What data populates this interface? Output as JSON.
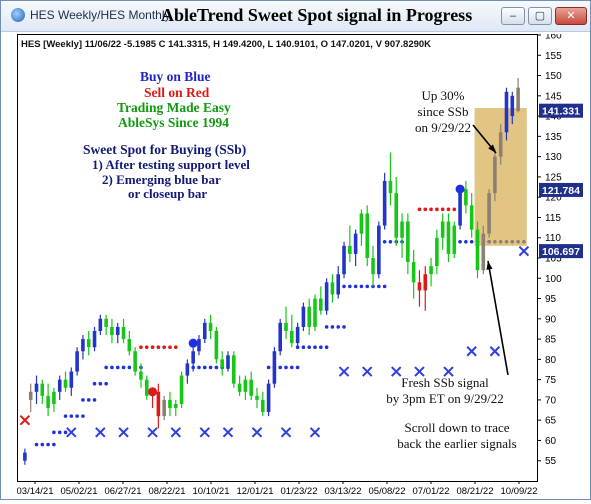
{
  "window": {
    "tab_label": "HES Weekly/HES Monthly",
    "title": "AbleTrend Sweet Spot signal in Progress",
    "buttons": [
      "–",
      "▢",
      "✕"
    ]
  },
  "header": {
    "info_line": "HES [Weekly] 11/06/22 -5.1985 C 141.3315, H 149.4200, L 140.9101, O 147.0201, V 907.8290K"
  },
  "legend_text": {
    "buy": "Buy on Blue",
    "sell": "Sell on Red",
    "tagline": "Trading Made Easy",
    "since": "AbleSys Since 1994"
  },
  "annotations": {
    "ssb_title": "Sweet Spot for Buying (SSb)",
    "ssb_rule1": "1) After testing support level",
    "ssb_rule2": "2) Emerging blue bar",
    "ssb_rule3": "or closeup bar",
    "up_line1": "Up 30%",
    "up_line2": "since SSb",
    "up_line3": "on 9/29/22",
    "fresh_line1": "Fresh SSb signal",
    "fresh_line2": "by 3pm ET on 9/29/22",
    "scroll_line1": "Scroll down to trace",
    "scroll_line2": "back the earlier signals"
  },
  "price_tags": [
    {
      "value": "141.331",
      "color": "#1f2f8c"
    },
    {
      "value": "121.784",
      "color": "#1f2f8c"
    },
    {
      "value": "106.697",
      "color": "#1f2f8c"
    }
  ],
  "colors": {
    "blue_bar": "#2335c8",
    "red_bar": "#e01818",
    "green_bar": "#17c717",
    "gray_bar": "#8d7f72",
    "stop_blue": "#2030e0",
    "stop_red": "#e01818",
    "x_marker": "#2c3fe0",
    "highlight": "#d9b25a",
    "buy_text": "#2323c8",
    "sell_text": "#e01818",
    "green_text": "#0f9a0f",
    "ssb_text": "#121a78"
  },
  "chart_data": {
    "type": "candlestick",
    "ylim": [
      50,
      160
    ],
    "y_ticks": [
      55,
      60,
      65,
      70,
      75,
      80,
      85,
      90,
      95,
      100,
      105,
      110,
      115,
      120,
      125,
      130,
      135,
      140,
      145,
      150,
      155,
      160
    ],
    "x_ticks": [
      "03/14/21",
      "05/02/21",
      "06/27/21",
      "08/22/21",
      "10/10/21",
      "12/01/21",
      "01/23/22",
      "03/13/22",
      "05/08/22",
      "07/01/22",
      "08/21/22",
      "10/09/22"
    ],
    "bars": [
      {
        "o": 55,
        "h": 58,
        "l": 54,
        "c": 57,
        "col": "blue"
      },
      {
        "o": 70,
        "h": 74,
        "l": 67,
        "c": 72,
        "col": "gray"
      },
      {
        "o": 72,
        "h": 76,
        "l": 69,
        "c": 74,
        "col": "blue"
      },
      {
        "o": 74,
        "h": 75,
        "l": 69,
        "c": 71,
        "col": "green"
      },
      {
        "o": 71,
        "h": 74,
        "l": 66,
        "c": 68,
        "col": "green"
      },
      {
        "o": 69,
        "h": 73,
        "l": 67,
        "c": 72,
        "col": "green"
      },
      {
        "o": 72,
        "h": 76,
        "l": 70,
        "c": 75,
        "col": "blue"
      },
      {
        "o": 75,
        "h": 77,
        "l": 72,
        "c": 73,
        "col": "green"
      },
      {
        "o": 73,
        "h": 78,
        "l": 71,
        "c": 77,
        "col": "blue"
      },
      {
        "o": 77,
        "h": 83,
        "l": 76,
        "c": 82,
        "col": "blue"
      },
      {
        "o": 82,
        "h": 86,
        "l": 80,
        "c": 85,
        "col": "blue"
      },
      {
        "o": 85,
        "h": 87,
        "l": 81,
        "c": 83,
        "col": "green"
      },
      {
        "o": 83,
        "h": 88,
        "l": 82,
        "c": 87,
        "col": "blue"
      },
      {
        "o": 87,
        "h": 91,
        "l": 86,
        "c": 90,
        "col": "blue"
      },
      {
        "o": 90,
        "h": 91,
        "l": 86,
        "c": 88,
        "col": "green"
      },
      {
        "o": 88,
        "h": 90,
        "l": 84,
        "c": 86,
        "col": "green"
      },
      {
        "o": 86,
        "h": 89,
        "l": 84,
        "c": 88,
        "col": "blue"
      },
      {
        "o": 88,
        "h": 90,
        "l": 84,
        "c": 85,
        "col": "green"
      },
      {
        "o": 85,
        "h": 87,
        "l": 81,
        "c": 82,
        "col": "green"
      },
      {
        "o": 82,
        "h": 83,
        "l": 76,
        "c": 77,
        "col": "green"
      },
      {
        "o": 77,
        "h": 79,
        "l": 73,
        "c": 75,
        "col": "green"
      },
      {
        "o": 75,
        "h": 76,
        "l": 70,
        "c": 71,
        "col": "green"
      },
      {
        "o": 71,
        "h": 73,
        "l": 68,
        "c": 72,
        "col": "red"
      },
      {
        "o": 72,
        "h": 74,
        "l": 63,
        "c": 66,
        "col": "red"
      },
      {
        "o": 66,
        "h": 71,
        "l": 65,
        "c": 70,
        "col": "gray"
      },
      {
        "o": 70,
        "h": 72,
        "l": 66,
        "c": 68,
        "col": "green"
      },
      {
        "o": 68,
        "h": 70,
        "l": 66,
        "c": 69,
        "col": "green"
      },
      {
        "o": 69,
        "h": 77,
        "l": 68,
        "c": 76,
        "col": "green"
      },
      {
        "o": 76,
        "h": 80,
        "l": 74,
        "c": 79,
        "col": "blue"
      },
      {
        "o": 79,
        "h": 83,
        "l": 77,
        "c": 82,
        "col": "blue"
      },
      {
        "o": 82,
        "h": 86,
        "l": 81,
        "c": 85,
        "col": "blue"
      },
      {
        "o": 85,
        "h": 90,
        "l": 84,
        "c": 89,
        "col": "blue"
      },
      {
        "o": 89,
        "h": 91,
        "l": 85,
        "c": 87,
        "col": "green"
      },
      {
        "o": 87,
        "h": 88,
        "l": 79,
        "c": 80,
        "col": "green"
      },
      {
        "o": 80,
        "h": 82,
        "l": 76,
        "c": 78,
        "col": "green"
      },
      {
        "o": 78,
        "h": 82,
        "l": 77,
        "c": 81,
        "col": "blue"
      },
      {
        "o": 81,
        "h": 82,
        "l": 73,
        "c": 74,
        "col": "green"
      },
      {
        "o": 74,
        "h": 76,
        "l": 71,
        "c": 72,
        "col": "green"
      },
      {
        "o": 72,
        "h": 76,
        "l": 70,
        "c": 75,
        "col": "green"
      },
      {
        "o": 75,
        "h": 77,
        "l": 70,
        "c": 71,
        "col": "green"
      },
      {
        "o": 71,
        "h": 73,
        "l": 68,
        "c": 70,
        "col": "green"
      },
      {
        "o": 70,
        "h": 72,
        "l": 66,
        "c": 67,
        "col": "green"
      },
      {
        "o": 67,
        "h": 75,
        "l": 66,
        "c": 74,
        "col": "blue"
      },
      {
        "o": 74,
        "h": 83,
        "l": 73,
        "c": 82,
        "col": "blue"
      },
      {
        "o": 82,
        "h": 90,
        "l": 81,
        "c": 89,
        "col": "blue"
      },
      {
        "o": 89,
        "h": 93,
        "l": 85,
        "c": 87,
        "col": "green"
      },
      {
        "o": 87,
        "h": 91,
        "l": 83,
        "c": 84,
        "col": "green"
      },
      {
        "o": 84,
        "h": 89,
        "l": 83,
        "c": 88,
        "col": "blue"
      },
      {
        "o": 88,
        "h": 94,
        "l": 87,
        "c": 93,
        "col": "blue"
      },
      {
        "o": 93,
        "h": 95,
        "l": 86,
        "c": 88,
        "col": "green"
      },
      {
        "o": 88,
        "h": 96,
        "l": 87,
        "c": 95,
        "col": "green"
      },
      {
        "o": 95,
        "h": 98,
        "l": 91,
        "c": 92,
        "col": "green"
      },
      {
        "o": 92,
        "h": 100,
        "l": 91,
        "c": 99,
        "col": "blue"
      },
      {
        "o": 99,
        "h": 101,
        "l": 94,
        "c": 96,
        "col": "green"
      },
      {
        "o": 96,
        "h": 103,
        "l": 95,
        "c": 101,
        "col": "blue"
      },
      {
        "o": 101,
        "h": 109,
        "l": 100,
        "c": 108,
        "col": "blue"
      },
      {
        "o": 108,
        "h": 113,
        "l": 104,
        "c": 106,
        "col": "green"
      },
      {
        "o": 106,
        "h": 112,
        "l": 103,
        "c": 111,
        "col": "blue"
      },
      {
        "o": 111,
        "h": 117,
        "l": 108,
        "c": 116,
        "col": "green"
      },
      {
        "o": 116,
        "h": 118,
        "l": 103,
        "c": 105,
        "col": "green"
      },
      {
        "o": 105,
        "h": 108,
        "l": 98,
        "c": 101,
        "col": "green"
      },
      {
        "o": 101,
        "h": 114,
        "l": 100,
        "c": 113,
        "col": "blue"
      },
      {
        "o": 113,
        "h": 126,
        "l": 112,
        "c": 124,
        "col": "blue"
      },
      {
        "o": 124,
        "h": 131,
        "l": 118,
        "c": 121,
        "col": "green"
      },
      {
        "o": 121,
        "h": 125,
        "l": 108,
        "c": 110,
        "col": "green"
      },
      {
        "o": 110,
        "h": 116,
        "l": 105,
        "c": 114,
        "col": "green"
      },
      {
        "o": 114,
        "h": 116,
        "l": 101,
        "c": 104,
        "col": "green"
      },
      {
        "o": 104,
        "h": 107,
        "l": 95,
        "c": 99,
        "col": "green"
      },
      {
        "o": 99,
        "h": 102,
        "l": 93,
        "c": 97,
        "col": "red"
      },
      {
        "o": 97,
        "h": 103,
        "l": 92,
        "c": 101,
        "col": "red"
      },
      {
        "o": 101,
        "h": 105,
        "l": 98,
        "c": 103,
        "col": "green"
      },
      {
        "o": 103,
        "h": 112,
        "l": 101,
        "c": 110,
        "col": "green"
      },
      {
        "o": 110,
        "h": 116,
        "l": 107,
        "c": 114,
        "col": "green"
      },
      {
        "o": 114,
        "h": 116,
        "l": 104,
        "c": 106,
        "col": "green"
      },
      {
        "o": 106,
        "h": 114,
        "l": 105,
        "c": 113,
        "col": "green"
      },
      {
        "o": 113,
        "h": 123,
        "l": 112,
        "c": 122,
        "col": "blue"
      },
      {
        "o": 122,
        "h": 124,
        "l": 116,
        "c": 118,
        "col": "green"
      },
      {
        "o": 118,
        "h": 121,
        "l": 110,
        "c": 112,
        "col": "green"
      },
      {
        "o": 112,
        "h": 114,
        "l": 100,
        "c": 102,
        "col": "green"
      },
      {
        "o": 102,
        "h": 113,
        "l": 101,
        "c": 111,
        "col": "gray"
      },
      {
        "o": 111,
        "h": 122,
        "l": 110,
        "c": 121,
        "col": "gray"
      },
      {
        "o": 121,
        "h": 132,
        "l": 119,
        "c": 130,
        "col": "gray"
      },
      {
        "o": 130,
        "h": 138,
        "l": 128,
        "c": 136,
        "col": "gray"
      },
      {
        "o": 136,
        "h": 147,
        "l": 134,
        "c": 146,
        "col": "blue"
      },
      {
        "o": 140,
        "h": 146,
        "l": 138,
        "c": 145,
        "col": "blue"
      },
      {
        "o": 147,
        "h": 149.4,
        "l": 140.9,
        "c": 141.3,
        "col": "gray"
      }
    ],
    "support_dots": [
      {
        "y": 59,
        "from": 2,
        "to": 5,
        "col": "blue"
      },
      {
        "y": 62,
        "from": 5,
        "to": 7,
        "col": "blue"
      },
      {
        "y": 66,
        "from": 7,
        "to": 10,
        "col": "blue"
      },
      {
        "y": 70,
        "from": 10,
        "to": 12,
        "col": "blue"
      },
      {
        "y": 74,
        "from": 12,
        "to": 14,
        "col": "blue"
      },
      {
        "y": 78,
        "from": 14,
        "to": 20,
        "col": "blue"
      },
      {
        "y": 83,
        "from": 20,
        "to": 26,
        "col": "red"
      },
      {
        "y": 78,
        "from": 28,
        "to": 36,
        "col": "blue"
      },
      {
        "y": 78,
        "from": 42,
        "to": 47,
        "col": "blue"
      },
      {
        "y": 83,
        "from": 47,
        "to": 52,
        "col": "blue"
      },
      {
        "y": 88,
        "from": 52,
        "to": 55,
        "col": "blue"
      },
      {
        "y": 98,
        "from": 55,
        "to": 62,
        "col": "blue"
      },
      {
        "y": 109,
        "from": 62,
        "to": 66,
        "col": "blue"
      },
      {
        "y": 117,
        "from": 68,
        "to": 74,
        "col": "red"
      },
      {
        "y": 109,
        "from": 73,
        "to": 80,
        "col": "blue"
      },
      {
        "y": 109,
        "from": 80,
        "to": 86,
        "col": "gray"
      }
    ],
    "x_markers": [
      {
        "i": 0,
        "y": 65,
        "col": "red"
      },
      {
        "i": 8,
        "y": 62,
        "col": "blue"
      },
      {
        "i": 13,
        "y": 62,
        "col": "blue"
      },
      {
        "i": 17,
        "y": 62,
        "col": "blue"
      },
      {
        "i": 22,
        "y": 62,
        "col": "blue"
      },
      {
        "i": 26,
        "y": 62,
        "col": "blue"
      },
      {
        "i": 31,
        "y": 62,
        "col": "blue"
      },
      {
        "i": 35,
        "y": 62,
        "col": "blue"
      },
      {
        "i": 40,
        "y": 62,
        "col": "blue"
      },
      {
        "i": 45,
        "y": 62,
        "col": "blue"
      },
      {
        "i": 50,
        "y": 62,
        "col": "blue"
      },
      {
        "i": 55,
        "y": 77,
        "col": "blue"
      },
      {
        "i": 59,
        "y": 77,
        "col": "blue"
      },
      {
        "i": 64,
        "y": 77,
        "col": "blue"
      },
      {
        "i": 68,
        "y": 77,
        "col": "blue"
      },
      {
        "i": 73,
        "y": 77,
        "col": "blue"
      },
      {
        "i": 77,
        "y": 82,
        "col": "blue"
      },
      {
        "i": 81,
        "y": 82,
        "col": "blue"
      },
      {
        "i": 86,
        "y": 106.7,
        "col": "blue"
      }
    ],
    "circle_markers": [
      {
        "i": 22,
        "y": 72,
        "col": "red"
      },
      {
        "i": 29,
        "y": 84,
        "col": "blue"
      },
      {
        "i": 75,
        "y": 122,
        "col": "blue"
      }
    ],
    "highlight_box": {
      "from": 78,
      "to": 86,
      "y_low": 108,
      "y_high": 142
    }
  }
}
